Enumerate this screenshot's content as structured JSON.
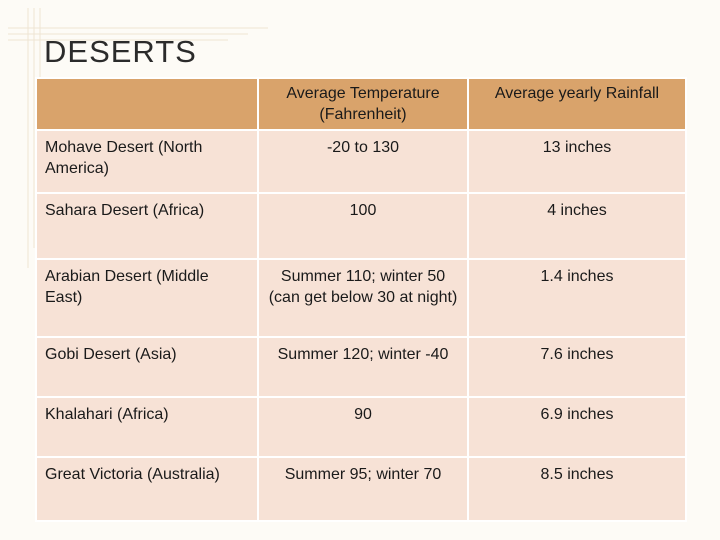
{
  "title": "DESERTS",
  "table": {
    "headers": [
      "",
      "Average Temperature (Fahrenheit)",
      "Average yearly Rainfall"
    ],
    "rows": [
      {
        "name": "Mohave Desert (North America)",
        "temp": "-20 to 130",
        "rain": "13 inches"
      },
      {
        "name": "Sahara Desert (Africa)",
        "temp": "100",
        "rain": "4 inches"
      },
      {
        "name": "Arabian Desert (Middle East)",
        "temp": "Summer 110; winter 50 (can get below 30 at night)",
        "rain": "1.4 inches"
      },
      {
        "name": "Gobi Desert (Asia)",
        "temp": "Summer 120; winter -40",
        "rain": "7.6 inches"
      },
      {
        "name": "Khalahari (Africa)",
        "temp": "90",
        "rain": "6.9 inches"
      },
      {
        "name": "Great Victoria (Australia)",
        "temp": "Summer 95; winter 70",
        "rain": "8.5 inches"
      }
    ]
  },
  "colors": {
    "header": "#d9a36b",
    "row": "#f7e2d6",
    "background": "#fdfbf6"
  }
}
